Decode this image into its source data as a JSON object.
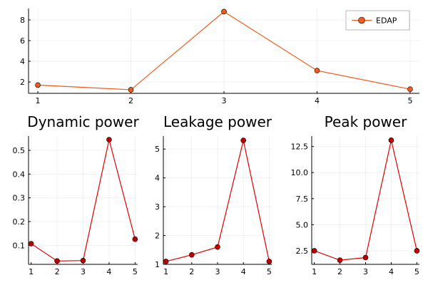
{
  "chart_data": [
    {
      "type": "line",
      "title": "",
      "x": [
        1,
        2,
        3,
        4,
        5
      ],
      "series": [
        {
          "name": "EDAP",
          "values": [
            1.7,
            1.25,
            8.8,
            3.1,
            1.3
          ],
          "color": "#f05a1a",
          "marker_color": "#f05a1a"
        }
      ],
      "xlim": [
        0.9,
        5.1
      ],
      "ylim": [
        0.9,
        9.1
      ],
      "xticks": [
        1,
        2,
        3,
        4,
        5
      ],
      "yticks": [
        2,
        4,
        6,
        8
      ],
      "xtick_labels": [
        "1",
        "2",
        "3",
        "4",
        "5"
      ],
      "ytick_labels": [
        "2",
        "4",
        "6",
        "8"
      ],
      "grid": true,
      "legend": "top-right"
    },
    {
      "type": "line",
      "title": "Dynamic power",
      "x": [
        1,
        2,
        3,
        4,
        5
      ],
      "series": [
        {
          "values": [
            0.107,
            0.034,
            0.036,
            0.545,
            0.126
          ],
          "color": "#e00000",
          "marker_color": "#c00000"
        }
      ],
      "xlim": [
        0.9,
        5.1
      ],
      "ylim": [
        0.02,
        0.56
      ],
      "xticks": [
        1,
        2,
        3,
        4,
        5
      ],
      "yticks": [
        0.1,
        0.2,
        0.3,
        0.4,
        0.5
      ],
      "xtick_labels": [
        "1",
        "2",
        "3",
        "4",
        "5"
      ],
      "ytick_labels": [
        "0.1",
        "0.2",
        "0.3",
        "0.4",
        "0.5"
      ],
      "grid": true
    },
    {
      "type": "line",
      "title": "Leakage power",
      "x": [
        1,
        2,
        3,
        4,
        5
      ],
      "series": [
        {
          "values": [
            1.1,
            1.33,
            1.6,
            5.3,
            1.1
          ],
          "color": "#e00000",
          "marker_color": "#c00000"
        }
      ],
      "xlim": [
        0.9,
        5.1
      ],
      "ylim": [
        1.0,
        5.45
      ],
      "xticks": [
        1,
        2,
        3,
        4,
        5
      ],
      "yticks": [
        1,
        2,
        3,
        4,
        5
      ],
      "xtick_labels": [
        "1",
        "2",
        "3",
        "4",
        "5"
      ],
      "ytick_labels": [
        "1",
        "2",
        "3",
        "4",
        "5"
      ],
      "grid": true
    },
    {
      "type": "line",
      "title": "Peak power",
      "x": [
        1,
        2,
        3,
        4,
        5
      ],
      "series": [
        {
          "values": [
            2.5,
            1.6,
            1.85,
            13.1,
            2.5
          ],
          "color": "#e00000",
          "marker_color": "#c00000"
        }
      ],
      "xlim": [
        0.9,
        5.1
      ],
      "ylim": [
        1.2,
        13.5
      ],
      "xticks": [
        1,
        2,
        3,
        4,
        5
      ],
      "yticks": [
        2.5,
        5.0,
        7.5,
        10.0,
        12.5
      ],
      "xtick_labels": [
        "1",
        "2",
        "3",
        "4",
        "5"
      ],
      "ytick_labels": [
        "2.5",
        "5.0",
        "7.5",
        "10.0",
        "12.5"
      ],
      "grid": true
    }
  ]
}
